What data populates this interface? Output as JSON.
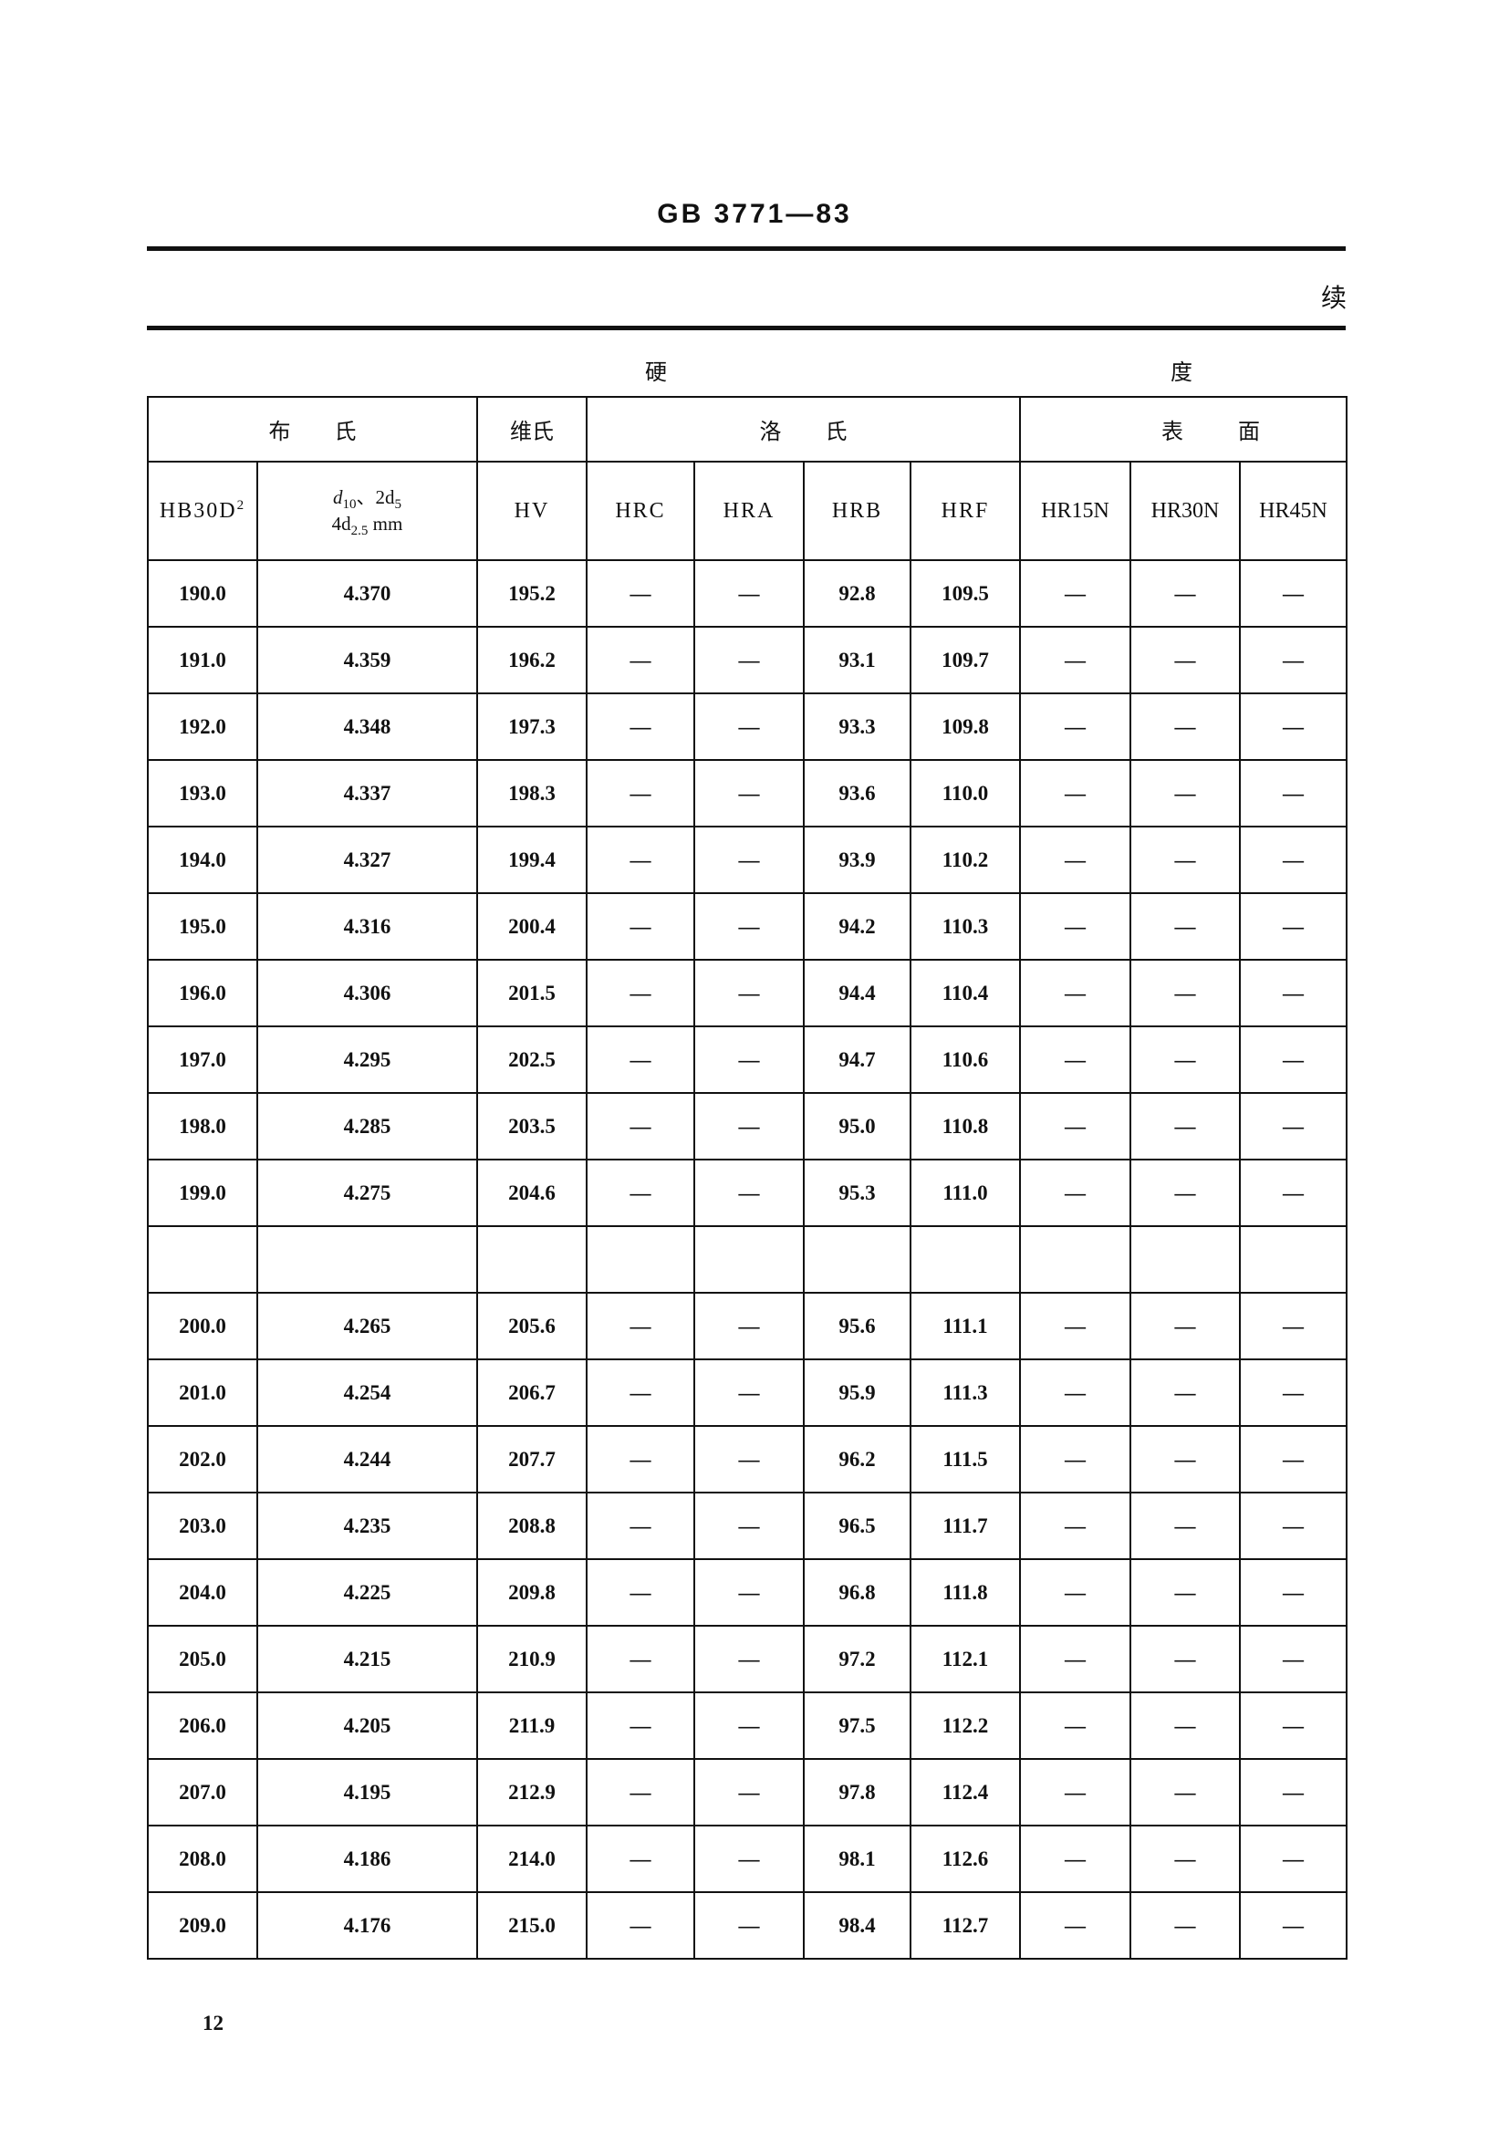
{
  "header": {
    "doc_id": "GB 3771—83",
    "continued": "续"
  },
  "table": {
    "group_header": [
      "硬",
      "度"
    ],
    "sub_groups": {
      "brinell": "布        氏",
      "vickers": "维氏",
      "rockwell": "洛        氏",
      "superficial": "表          面"
    },
    "columns": {
      "hb": "HB30D",
      "hb_sup": "2",
      "d_line1_a": "d",
      "d_line1_a_sub": "10",
      "d_line1_b": "、2d",
      "d_line1_b_sub": "5",
      "d_line2_a": "4d",
      "d_line2_sub": "2.5",
      "d_line2_unit": " mm",
      "hv": "HV",
      "hrc": "HRC",
      "hra": "HRA",
      "hrb": "HRB",
      "hrf": "HRF",
      "hr15n": "HR15N",
      "hr30n": "HR30N",
      "hr45n": "HR45N"
    },
    "rows": [
      [
        "190.0",
        "4.370",
        "195.2",
        "—",
        "—",
        "92.8",
        "109.5",
        "—",
        "—",
        "—"
      ],
      [
        "191.0",
        "4.359",
        "196.2",
        "—",
        "—",
        "93.1",
        "109.7",
        "—",
        "—",
        "—"
      ],
      [
        "192.0",
        "4.348",
        "197.3",
        "—",
        "—",
        "93.3",
        "109.8",
        "—",
        "—",
        "—"
      ],
      [
        "193.0",
        "4.337",
        "198.3",
        "—",
        "—",
        "93.6",
        "110.0",
        "—",
        "—",
        "—"
      ],
      [
        "194.0",
        "4.327",
        "199.4",
        "—",
        "—",
        "93.9",
        "110.2",
        "—",
        "—",
        "—"
      ],
      [
        "195.0",
        "4.316",
        "200.4",
        "—",
        "—",
        "94.2",
        "110.3",
        "—",
        "—",
        "—"
      ],
      [
        "196.0",
        "4.306",
        "201.5",
        "—",
        "—",
        "94.4",
        "110.4",
        "—",
        "—",
        "—"
      ],
      [
        "197.0",
        "4.295",
        "202.5",
        "—",
        "—",
        "94.7",
        "110.6",
        "—",
        "—",
        "—"
      ],
      [
        "198.0",
        "4.285",
        "203.5",
        "—",
        "—",
        "95.0",
        "110.8",
        "—",
        "—",
        "—"
      ],
      [
        "199.0",
        "4.275",
        "204.6",
        "—",
        "—",
        "95.3",
        "111.0",
        "—",
        "—",
        "—"
      ],
      [
        "",
        "",
        "",
        "",
        "",
        "",
        "",
        "",
        "",
        ""
      ],
      [
        "200.0",
        "4.265",
        "205.6",
        "—",
        "—",
        "95.6",
        "111.1",
        "—",
        "—",
        "—"
      ],
      [
        "201.0",
        "4.254",
        "206.7",
        "—",
        "—",
        "95.9",
        "111.3",
        "—",
        "—",
        "—"
      ],
      [
        "202.0",
        "4.244",
        "207.7",
        "—",
        "—",
        "96.2",
        "111.5",
        "—",
        "—",
        "—"
      ],
      [
        "203.0",
        "4.235",
        "208.8",
        "—",
        "—",
        "96.5",
        "111.7",
        "—",
        "—",
        "—"
      ],
      [
        "204.0",
        "4.225",
        "209.8",
        "—",
        "—",
        "96.8",
        "111.8",
        "—",
        "—",
        "—"
      ],
      [
        "205.0",
        "4.215",
        "210.9",
        "—",
        "—",
        "97.2",
        "112.1",
        "—",
        "—",
        "—"
      ],
      [
        "206.0",
        "4.205",
        "211.9",
        "—",
        "—",
        "97.5",
        "112.2",
        "—",
        "—",
        "—"
      ],
      [
        "207.0",
        "4.195",
        "212.9",
        "—",
        "—",
        "97.8",
        "112.4",
        "—",
        "—",
        "—"
      ],
      [
        "208.0",
        "4.186",
        "214.0",
        "—",
        "—",
        "98.1",
        "112.6",
        "—",
        "—",
        "—"
      ],
      [
        "209.0",
        "4.176",
        "215.0",
        "—",
        "—",
        "98.4",
        "112.7",
        "—",
        "—",
        "—"
      ]
    ]
  },
  "footer": {
    "page_number": "12"
  }
}
